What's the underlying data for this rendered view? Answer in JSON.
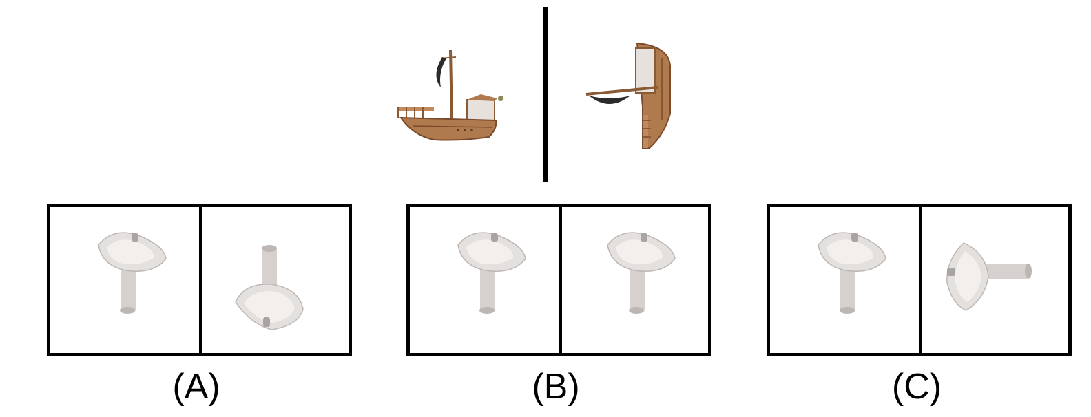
{
  "reference": {
    "object": "ship",
    "views": [
      "ship-side-view",
      "ship-rotated-view"
    ]
  },
  "options": [
    {
      "label": "(A)",
      "left_view": "sink-upright",
      "right_view": "sink-flipped-upside-down"
    },
    {
      "label": "(B)",
      "left_view": "sink-upright",
      "right_view": "sink-upright"
    },
    {
      "label": "(C)",
      "left_view": "sink-upright",
      "right_view": "sink-rotated-sideways"
    }
  ],
  "colors": {
    "line": "#000000",
    "hull": "#b07a4f",
    "hull_dark": "#7a4a2a",
    "sail": "#2b2b2b",
    "sink": "#e4e0de",
    "sink_shadow": "#bdb7b4"
  }
}
